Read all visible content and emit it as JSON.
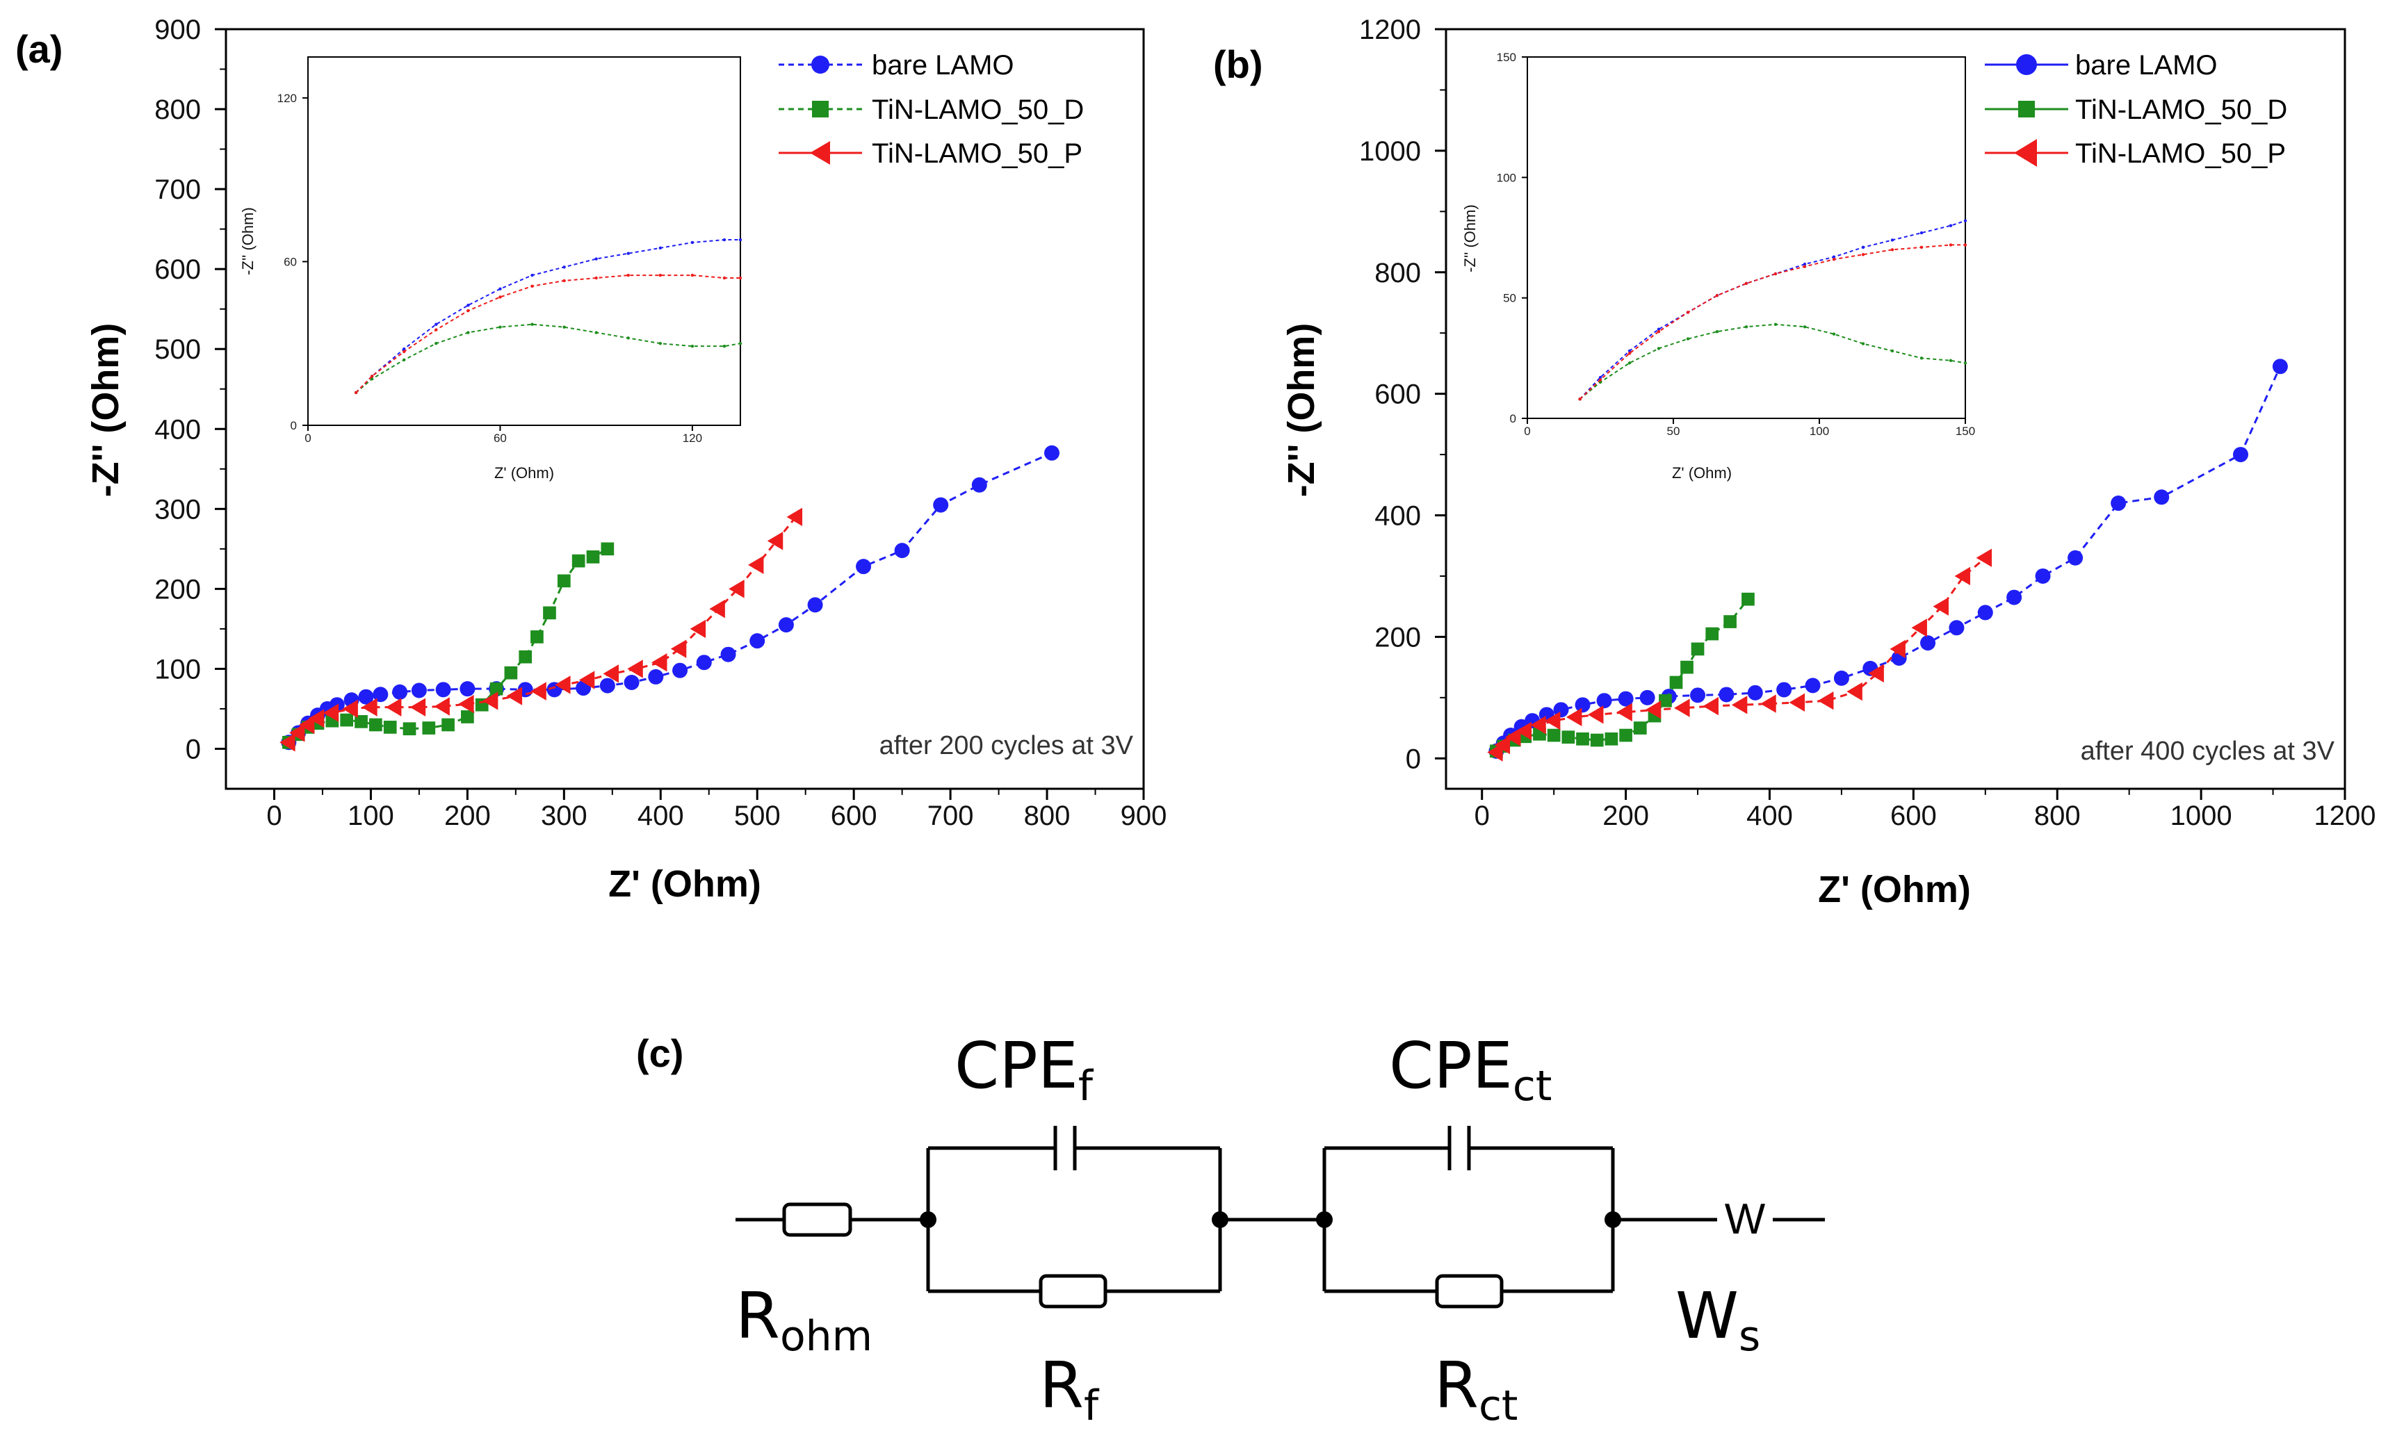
{
  "charts": {
    "a": {
      "type": "scatter",
      "panel_label": "(a)",
      "xlabel": "Z' (Ohm)",
      "ylabel": "-Z'' (Ohm)",
      "xlim": [
        -50,
        900
      ],
      "ylim": [
        -50,
        900
      ],
      "xticks": [
        "0",
        "100",
        "200",
        "300",
        "400",
        "500",
        "600",
        "700",
        "800",
        "900"
      ],
      "yticks": [
        "0",
        "100",
        "200",
        "300",
        "400",
        "500",
        "600",
        "700",
        "800",
        "900"
      ],
      "annotation": "after 200 cycles at 3V",
      "inset": {
        "xlabel": "Z' (Ohm)",
        "ylabel": "-Z'' (Ohm)",
        "xlim": [
          0,
          135
        ],
        "ylim": [
          0,
          135
        ],
        "xticks": [
          "0",
          "60",
          "120"
        ],
        "yticks": [
          "0",
          "60",
          "120"
        ]
      }
    },
    "b": {
      "type": "scatter",
      "panel_label": "(b)",
      "xlabel": "Z' (Ohm)",
      "ylabel": "-Z'' (Ohm)",
      "xlim": [
        -50,
        1200
      ],
      "ylim": [
        -50,
        1200
      ],
      "xticks": [
        "0",
        "200",
        "400",
        "600",
        "800",
        "1000",
        "1200"
      ],
      "yticks": [
        "0",
        "200",
        "400",
        "600",
        "800",
        "1000",
        "1200"
      ],
      "annotation": "after 400 cycles at 3V",
      "inset": {
        "xlabel": "Z' (Ohm)",
        "ylabel": "-Z'' (Ohm)",
        "xlim": [
          0,
          150
        ],
        "ylim": [
          0,
          150
        ],
        "xticks": [
          "0",
          "50",
          "100",
          "150"
        ],
        "yticks": [
          "0",
          "50",
          "100",
          "150"
        ]
      }
    }
  },
  "legend": [
    {
      "name": "bare LAMO",
      "color": "#1f1ff5",
      "marker": "circle"
    },
    {
      "name": "TiN-LAMO_50_D",
      "color": "#1e8e1e",
      "marker": "square"
    },
    {
      "name": "TiN-LAMO_50_P",
      "color": "#ee1c1c",
      "marker": "triangle-left"
    }
  ],
  "chart_data": [
    {
      "type": "scatter",
      "title": "(a) after 200 cycles at 3V",
      "xlabel": "Z' (Ohm)",
      "ylabel": "-Z'' (Ohm)",
      "xlim": [
        -50,
        900
      ],
      "ylim": [
        -50,
        900
      ],
      "series": [
        {
          "name": "bare LAMO",
          "color": "#1f1ff5",
          "marker": "circle",
          "x": [
            15,
            25,
            35,
            45,
            55,
            65,
            80,
            95,
            110,
            130,
            150,
            175,
            200,
            230,
            260,
            290,
            320,
            345,
            370,
            395,
            420,
            445,
            470,
            500,
            530,
            560,
            610,
            650,
            690,
            730,
            805
          ],
          "y": [
            8,
            20,
            32,
            42,
            50,
            55,
            61,
            65,
            68,
            71,
            73,
            74,
            75,
            75,
            74,
            74,
            76,
            79,
            83,
            90,
            98,
            108,
            118,
            135,
            155,
            180,
            228,
            248,
            305,
            330,
            370
          ]
        },
        {
          "name": "TiN-LAMO_50_D",
          "color": "#1e8e1e",
          "marker": "square",
          "x": [
            15,
            25,
            35,
            45,
            60,
            75,
            90,
            105,
            120,
            140,
            160,
            180,
            200,
            215,
            230,
            245,
            260,
            272,
            285,
            300,
            315,
            330,
            345
          ],
          "y": [
            8,
            18,
            27,
            32,
            35,
            36,
            34,
            30,
            27,
            25,
            26,
            30,
            40,
            55,
            75,
            95,
            115,
            140,
            170,
            210,
            235,
            240,
            250
          ]
        },
        {
          "name": "TiN-LAMO_50_P",
          "color": "#ee1c1c",
          "marker": "triangle-left",
          "x": [
            15,
            25,
            35,
            45,
            60,
            80,
            100,
            125,
            150,
            175,
            200,
            225,
            250,
            275,
            300,
            325,
            350,
            375,
            400,
            420,
            440,
            460,
            480,
            500,
            520,
            540
          ],
          "y": [
            8,
            20,
            30,
            38,
            45,
            50,
            52,
            52,
            52,
            53,
            56,
            60,
            66,
            72,
            80,
            86,
            94,
            100,
            108,
            125,
            150,
            175,
            200,
            230,
            260,
            290
          ]
        }
      ]
    },
    {
      "type": "scatter",
      "title": "(a) inset",
      "xlabel": "Z' (Ohm)",
      "ylabel": "-Z'' (Ohm)",
      "xlim": [
        0,
        135
      ],
      "ylim": [
        0,
        135
      ],
      "series": [
        {
          "name": "bare LAMO",
          "color": "#1f1ff5",
          "x": [
            15,
            20,
            30,
            40,
            50,
            60,
            70,
            80,
            90,
            100,
            110,
            120,
            130,
            135
          ],
          "y": [
            12,
            18,
            28,
            37,
            44,
            50,
            55,
            58,
            61,
            63,
            65,
            67,
            68,
            68
          ]
        },
        {
          "name": "TiN-LAMO_50_D",
          "color": "#1e8e1e",
          "x": [
            15,
            20,
            30,
            40,
            50,
            60,
            70,
            80,
            90,
            100,
            110,
            120,
            130,
            135
          ],
          "y": [
            12,
            17,
            24,
            30,
            34,
            36,
            37,
            36,
            34,
            32,
            30,
            29,
            29,
            30
          ]
        },
        {
          "name": "TiN-LAMO_50_P",
          "color": "#ee1c1c",
          "x": [
            15,
            20,
            30,
            40,
            50,
            60,
            70,
            80,
            90,
            100,
            110,
            120,
            130,
            135
          ],
          "y": [
            12,
            18,
            27,
            35,
            42,
            47,
            51,
            53,
            54,
            55,
            55,
            55,
            54,
            54
          ]
        }
      ]
    },
    {
      "type": "scatter",
      "title": "(b) after 400 cycles at 3V",
      "xlabel": "Z' (Ohm)",
      "ylabel": "-Z'' (Ohm)",
      "xlim": [
        -50,
        1200
      ],
      "ylim": [
        -50,
        1200
      ],
      "series": [
        {
          "name": "bare LAMO",
          "color": "#1f1ff5",
          "marker": "circle",
          "x": [
            20,
            30,
            40,
            55,
            70,
            90,
            110,
            140,
            170,
            200,
            230,
            260,
            300,
            340,
            380,
            420,
            460,
            500,
            540,
            580,
            620,
            660,
            700,
            740,
            780,
            825,
            885,
            945,
            1055,
            1110
          ],
          "y": [
            12,
            25,
            38,
            52,
            62,
            72,
            80,
            88,
            95,
            98,
            100,
            102,
            104,
            105,
            108,
            113,
            120,
            132,
            148,
            165,
            190,
            215,
            240,
            265,
            300,
            330,
            420,
            430,
            500,
            645
          ]
        },
        {
          "name": "TiN-LAMO_50_D",
          "color": "#1e8e1e",
          "marker": "square",
          "x": [
            20,
            30,
            45,
            60,
            80,
            100,
            120,
            140,
            160,
            180,
            200,
            220,
            240,
            255,
            270,
            285,
            300,
            320,
            345,
            370
          ],
          "y": [
            12,
            20,
            30,
            36,
            40,
            38,
            35,
            32,
            30,
            32,
            38,
            50,
            70,
            95,
            125,
            150,
            180,
            205,
            225,
            262
          ]
        },
        {
          "name": "TiN-LAMO_50_P",
          "color": "#ee1c1c",
          "marker": "triangle-left",
          "x": [
            20,
            30,
            45,
            60,
            80,
            100,
            130,
            160,
            200,
            240,
            280,
            320,
            360,
            400,
            440,
            480,
            520,
            550,
            580,
            610,
            640,
            670,
            700
          ],
          "y": [
            10,
            22,
            35,
            45,
            55,
            62,
            68,
            72,
            76,
            80,
            83,
            86,
            88,
            90,
            92,
            95,
            110,
            140,
            180,
            215,
            250,
            300,
            330
          ]
        }
      ]
    },
    {
      "type": "scatter",
      "title": "(b) inset",
      "xlabel": "Z' (Ohm)",
      "ylabel": "-Z'' (Ohm)",
      "xlim": [
        0,
        150
      ],
      "ylim": [
        0,
        150
      ],
      "series": [
        {
          "name": "bare LAMO",
          "color": "#1f1ff5",
          "x": [
            18,
            25,
            35,
            45,
            55,
            65,
            75,
            85,
            95,
            105,
            115,
            125,
            135,
            145,
            150
          ],
          "y": [
            8,
            17,
            28,
            37,
            44,
            51,
            56,
            60,
            64,
            67,
            71,
            74,
            77,
            80,
            82
          ]
        },
        {
          "name": "TiN-LAMO_50_D",
          "color": "#1e8e1e",
          "x": [
            18,
            25,
            35,
            45,
            55,
            65,
            75,
            85,
            95,
            105,
            115,
            125,
            135,
            145,
            150
          ],
          "y": [
            8,
            15,
            23,
            29,
            33,
            36,
            38,
            39,
            38,
            35,
            31,
            28,
            25,
            24,
            23
          ]
        },
        {
          "name": "TiN-LAMO_50_P",
          "color": "#ee1c1c",
          "x": [
            18,
            25,
            35,
            45,
            55,
            65,
            75,
            85,
            95,
            105,
            115,
            125,
            135,
            145,
            150
          ],
          "y": [
            8,
            16,
            27,
            36,
            44,
            51,
            56,
            60,
            63,
            66,
            68,
            70,
            71,
            72,
            72
          ]
        }
      ]
    }
  ],
  "circuit": {
    "panel_label": "(c)",
    "labels": {
      "r_ohm": "R",
      "r_ohm_sub": "ohm",
      "cpe_f": "CPE",
      "cpe_f_sub": "f",
      "r_f": "R",
      "r_f_sub": "f",
      "cpe_ct": "CPE",
      "cpe_ct_sub": "ct",
      "r_ct": "R",
      "r_ct_sub": "ct",
      "w_s": "W",
      "w_s_sub": "s",
      "warburg_symbol": "W"
    }
  }
}
